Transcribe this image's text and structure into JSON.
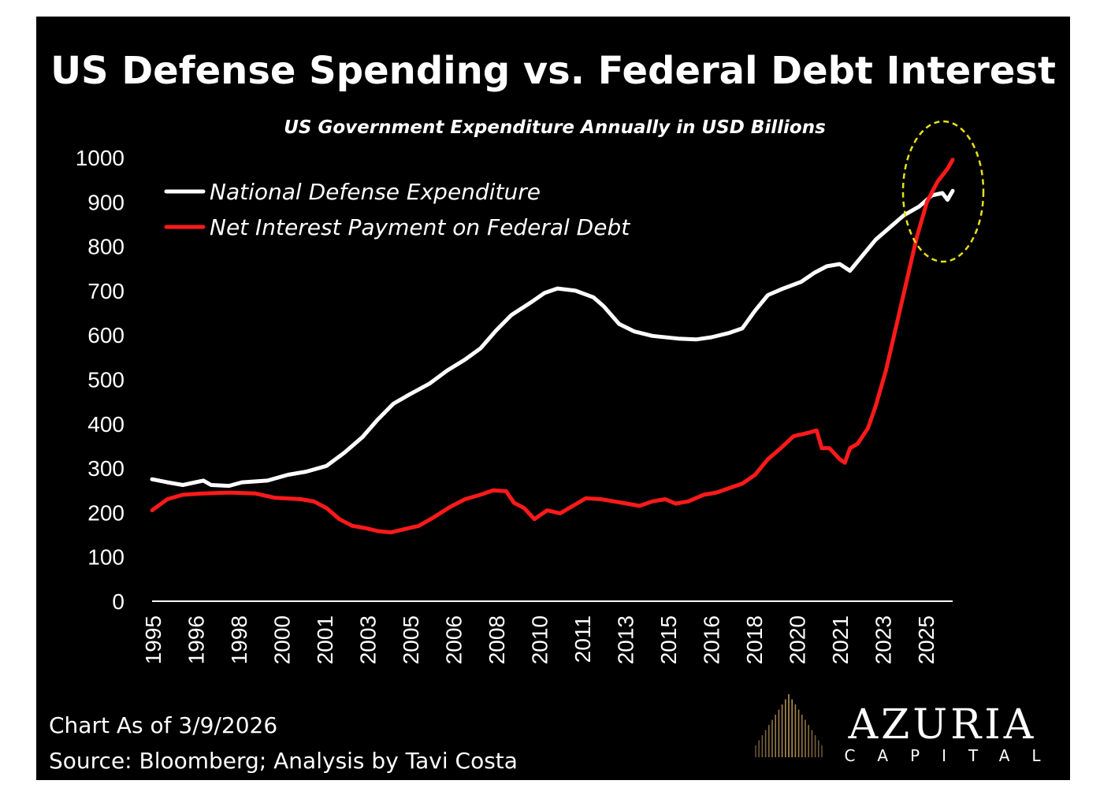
{
  "colors": {
    "background": "#000000",
    "text": "#ffffff",
    "defense": "#ffffff",
    "interest": "#ff1a1a",
    "highlight": "#e6e01a",
    "logo_gold": "#b8955a"
  },
  "chart_data": {
    "type": "line",
    "title": "US Defense Spending vs. Federal Debt Interest",
    "subtitle": "US Government Expenditure Annually in USD Billions",
    "ylim": [
      0,
      1000
    ],
    "y_ticks": [
      "1000",
      "900",
      "800",
      "700",
      "600",
      "500",
      "400",
      "300",
      "200",
      "100",
      "0"
    ],
    "x_ticks": [
      "1995",
      "1996",
      "1998",
      "2000",
      "2001",
      "2003",
      "2005",
      "2006",
      "2008",
      "2010",
      "2011",
      "2013",
      "2015",
      "2016",
      "2018",
      "2020",
      "2021",
      "2023",
      "2025"
    ],
    "x_range": [
      1995.0,
      2026.2
    ],
    "legend_position": "top-left",
    "series": [
      {
        "name": "National Defense Expenditure",
        "color": "#ffffff",
        "points": [
          [
            1995.0,
            275
          ],
          [
            1995.6,
            268
          ],
          [
            1996.2,
            262
          ],
          [
            1997.0,
            272
          ],
          [
            1997.3,
            262
          ],
          [
            1998.0,
            260
          ],
          [
            1998.5,
            268
          ],
          [
            1999.5,
            272
          ],
          [
            2000.3,
            285
          ],
          [
            2001.0,
            292
          ],
          [
            2001.8,
            305
          ],
          [
            2002.5,
            335
          ],
          [
            2003.2,
            370
          ],
          [
            2003.8,
            410
          ],
          [
            2004.4,
            445
          ],
          [
            2005.0,
            465
          ],
          [
            2005.8,
            490
          ],
          [
            2006.5,
            520
          ],
          [
            2007.2,
            545
          ],
          [
            2007.8,
            570
          ],
          [
            2008.4,
            610
          ],
          [
            2009.0,
            645
          ],
          [
            2009.8,
            675
          ],
          [
            2010.3,
            695
          ],
          [
            2010.8,
            705
          ],
          [
            2011.5,
            700
          ],
          [
            2012.2,
            685
          ],
          [
            2012.6,
            665
          ],
          [
            2013.2,
            625
          ],
          [
            2013.8,
            608
          ],
          [
            2014.5,
            598
          ],
          [
            2015.5,
            592
          ],
          [
            2016.2,
            590
          ],
          [
            2016.8,
            595
          ],
          [
            2017.5,
            605
          ],
          [
            2018.0,
            615
          ],
          [
            2018.5,
            655
          ],
          [
            2019.0,
            690
          ],
          [
            2019.6,
            705
          ],
          [
            2020.3,
            720
          ],
          [
            2020.8,
            740
          ],
          [
            2021.3,
            755
          ],
          [
            2021.8,
            760
          ],
          [
            2022.2,
            745
          ],
          [
            2022.7,
            780
          ],
          [
            2023.2,
            815
          ],
          [
            2023.8,
            845
          ],
          [
            2024.3,
            870
          ],
          [
            2024.9,
            890
          ],
          [
            2025.4,
            915
          ],
          [
            2025.8,
            920
          ],
          [
            2026.0,
            905
          ],
          [
            2026.2,
            925
          ]
        ]
      },
      {
        "name": "Net Interest Payment on Federal Debt",
        "color": "#ff1a1a",
        "points": [
          [
            1995.0,
            205
          ],
          [
            1995.6,
            230
          ],
          [
            1996.2,
            240
          ],
          [
            1997.0,
            243
          ],
          [
            1998.0,
            245
          ],
          [
            1999.0,
            243
          ],
          [
            1999.8,
            233
          ],
          [
            2000.8,
            230
          ],
          [
            2001.3,
            225
          ],
          [
            2001.8,
            210
          ],
          [
            2002.3,
            185
          ],
          [
            2002.8,
            170
          ],
          [
            2003.3,
            165
          ],
          [
            2003.8,
            158
          ],
          [
            2004.3,
            155
          ],
          [
            2004.8,
            162
          ],
          [
            2005.4,
            170
          ],
          [
            2006.0,
            190
          ],
          [
            2006.6,
            212
          ],
          [
            2007.2,
            230
          ],
          [
            2007.8,
            240
          ],
          [
            2008.3,
            250
          ],
          [
            2008.8,
            248
          ],
          [
            2009.1,
            222
          ],
          [
            2009.5,
            210
          ],
          [
            2009.9,
            185
          ],
          [
            2010.4,
            205
          ],
          [
            2010.9,
            198
          ],
          [
            2011.4,
            215
          ],
          [
            2011.9,
            232
          ],
          [
            2012.5,
            230
          ],
          [
            2013.0,
            225
          ],
          [
            2013.5,
            220
          ],
          [
            2014.0,
            215
          ],
          [
            2014.5,
            225
          ],
          [
            2015.0,
            230
          ],
          [
            2015.4,
            220
          ],
          [
            2015.9,
            225
          ],
          [
            2016.5,
            240
          ],
          [
            2017.0,
            245
          ],
          [
            2017.5,
            255
          ],
          [
            2018.0,
            265
          ],
          [
            2018.5,
            285
          ],
          [
            2019.0,
            320
          ],
          [
            2019.5,
            345
          ],
          [
            2020.0,
            372
          ],
          [
            2020.6,
            380
          ],
          [
            2020.9,
            385
          ],
          [
            2021.1,
            345
          ],
          [
            2021.4,
            345
          ],
          [
            2021.8,
            320
          ],
          [
            2022.0,
            312
          ],
          [
            2022.2,
            345
          ],
          [
            2022.5,
            355
          ],
          [
            2022.9,
            390
          ],
          [
            2023.2,
            440
          ],
          [
            2023.6,
            520
          ],
          [
            2024.0,
            620
          ],
          [
            2024.4,
            720
          ],
          [
            2024.8,
            820
          ],
          [
            2025.2,
            900
          ],
          [
            2025.6,
            945
          ],
          [
            2026.0,
            975
          ],
          [
            2026.2,
            995
          ]
        ]
      }
    ]
  },
  "footer": {
    "date_line": "Chart As of 3/9/2026",
    "source_line": "Source: Bloomberg; Analysis by Tavi Costa"
  },
  "logo": {
    "name": "AZURIA",
    "tagline": "CAPITAL"
  }
}
